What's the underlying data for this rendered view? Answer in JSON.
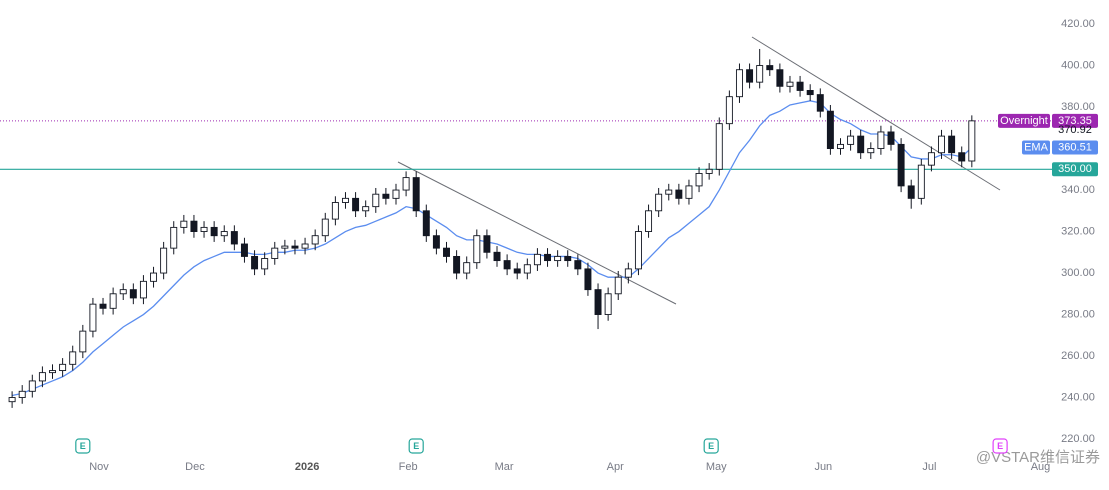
{
  "chart_data": {
    "type": "candlestick",
    "open": [
      238,
      240,
      243,
      248,
      252,
      253,
      256,
      262,
      272,
      285,
      283,
      290,
      292,
      288,
      296,
      300,
      312,
      322,
      325,
      320,
      322,
      318,
      320,
      314,
      308,
      302,
      307,
      312,
      313,
      312,
      314,
      318,
      326,
      334,
      336,
      330,
      332,
      338,
      336,
      340,
      346,
      330,
      318,
      312,
      308,
      300,
      305,
      318,
      310,
      306,
      302,
      300,
      304,
      309,
      306,
      308,
      306,
      302,
      292,
      280,
      290,
      298,
      302,
      320,
      330,
      338,
      340,
      336,
      342,
      348,
      350,
      372,
      385,
      398,
      392,
      400,
      398,
      390,
      392,
      388,
      386,
      378,
      360,
      362,
      366,
      358,
      360,
      368,
      362,
      342,
      336,
      352,
      358,
      366,
      358,
      354
    ],
    "high": [
      243,
      246,
      251,
      255,
      256,
      259,
      265,
      275,
      288,
      288,
      293,
      295,
      295,
      299,
      303,
      315,
      325,
      328,
      328,
      325,
      325,
      323,
      323,
      317,
      311,
      310,
      315,
      316,
      316,
      317,
      321,
      329,
      337,
      339,
      339,
      335,
      341,
      341,
      343,
      349,
      349,
      333,
      321,
      315,
      311,
      308,
      321,
      321,
      313,
      309,
      305,
      307,
      312,
      312,
      311,
      311,
      309,
      305,
      295,
      293,
      301,
      305,
      323,
      333,
      341,
      343,
      343,
      345,
      351,
      353,
      375,
      388,
      401,
      401,
      408,
      403,
      401,
      395,
      395,
      391,
      389,
      381,
      365,
      369,
      369,
      363,
      371,
      371,
      365,
      345,
      355,
      361,
      369,
      369,
      361,
      376
    ],
    "low": [
      235,
      237,
      240,
      245,
      249,
      250,
      253,
      259,
      269,
      280,
      280,
      287,
      285,
      285,
      293,
      297,
      309,
      319,
      317,
      317,
      315,
      315,
      311,
      305,
      299,
      299,
      304,
      309,
      309,
      309,
      311,
      315,
      323,
      331,
      327,
      327,
      329,
      333,
      333,
      337,
      327,
      315,
      309,
      305,
      297,
      297,
      302,
      307,
      303,
      299,
      297,
      297,
      301,
      303,
      303,
      303,
      299,
      289,
      273,
      277,
      287,
      295,
      299,
      317,
      327,
      335,
      333,
      333,
      339,
      345,
      347,
      369,
      382,
      389,
      389,
      395,
      387,
      387,
      385,
      383,
      375,
      357,
      357,
      359,
      355,
      355,
      357,
      359,
      339,
      331,
      333,
      349,
      355,
      355,
      351,
      351
    ],
    "close": [
      240,
      243,
      248,
      252,
      253,
      256,
      262,
      272,
      285,
      283,
      290,
      292,
      288,
      296,
      300,
      312,
      322,
      325,
      320,
      322,
      318,
      320,
      314,
      308,
      302,
      307,
      312,
      313,
      312,
      314,
      318,
      326,
      334,
      336,
      330,
      332,
      338,
      336,
      340,
      346,
      330,
      318,
      312,
      308,
      300,
      305,
      318,
      310,
      306,
      302,
      300,
      304,
      309,
      306,
      308,
      306,
      302,
      292,
      280,
      290,
      298,
      302,
      320,
      330,
      338,
      340,
      336,
      342,
      348,
      350,
      372,
      385,
      398,
      392,
      400,
      398,
      390,
      392,
      388,
      386,
      378,
      360,
      362,
      366,
      358,
      360,
      368,
      362,
      342,
      336,
      352,
      358,
      366,
      358,
      354,
      373.35
    ],
    "color_up": "#ffffff",
    "color_down": "#131722",
    "ema": {
      "name": "EMA",
      "color": "#5b8def",
      "value": 360.51,
      "values": [
        241,
        242,
        244,
        246,
        248,
        250,
        253,
        257,
        262,
        266,
        270,
        274,
        277,
        280,
        284,
        289,
        294,
        299,
        303,
        306,
        308,
        310,
        310,
        310,
        309,
        309,
        310,
        310,
        311,
        311,
        312,
        314,
        317,
        320,
        322,
        323,
        325,
        327,
        329,
        332,
        331,
        328,
        325,
        322,
        318,
        316,
        316,
        315,
        314,
        312,
        310,
        309,
        309,
        308,
        308,
        308,
        307,
        304,
        300,
        298,
        298,
        298,
        302,
        307,
        312,
        317,
        320,
        324,
        328,
        332,
        340,
        349,
        358,
        364,
        371,
        376,
        378,
        381,
        382,
        383,
        382,
        377,
        374,
        372,
        369,
        367,
        367,
        366,
        361,
        356,
        355,
        355,
        357,
        357,
        356,
        360.51
      ]
    },
    "overnight": {
      "name": "Overnight",
      "value": 373.35,
      "color": "#9c27b0"
    },
    "session_close": 370.92,
    "price_line": {
      "value": 350,
      "label": "350.00",
      "color": "#26a69a"
    },
    "xlim": [
      -1,
      106.5
    ],
    "xticks": [
      {
        "value": 8.6,
        "label": "Nov"
      },
      {
        "value": 18.1,
        "label": "Dec"
      },
      {
        "value": 29.2,
        "label": "2026"
      },
      {
        "value": 39.2,
        "label": "Feb"
      },
      {
        "value": 48.7,
        "label": "Mar"
      },
      {
        "value": 59.7,
        "label": "Apr"
      },
      {
        "value": 69.7,
        "label": "May"
      },
      {
        "value": 80.3,
        "label": "Jun"
      },
      {
        "value": 90.8,
        "label": "Jul"
      },
      {
        "value": 101.8,
        "label": "Aug"
      }
    ],
    "ylim": [
      212.3,
      431.6
    ],
    "yticks": [
      {
        "value": 220,
        "label": "220.00"
      },
      {
        "value": 240,
        "label": "240.00"
      },
      {
        "value": 260,
        "label": "260.00"
      },
      {
        "value": 280,
        "label": "280.00"
      },
      {
        "value": 300,
        "label": "300.00"
      },
      {
        "value": 320,
        "label": "320.00"
      },
      {
        "value": 340,
        "label": "340.00"
      },
      {
        "value": 360,
        "label": "360.00"
      },
      {
        "value": 380,
        "label": "380.00"
      },
      {
        "value": 400,
        "label": "400.00"
      },
      {
        "value": 420,
        "label": "420.00"
      }
    ],
    "events": [
      {
        "x": 7.0,
        "label": "E",
        "color": "#26a69a"
      },
      {
        "x": 40.0,
        "label": "E",
        "color": "#26a69a"
      },
      {
        "x": 69.2,
        "label": "E",
        "color": "#26a69a"
      },
      {
        "x": 97.8,
        "label": "E",
        "color": "#e040fb"
      }
    ]
  },
  "watermark": "@VSTAR维信证券"
}
